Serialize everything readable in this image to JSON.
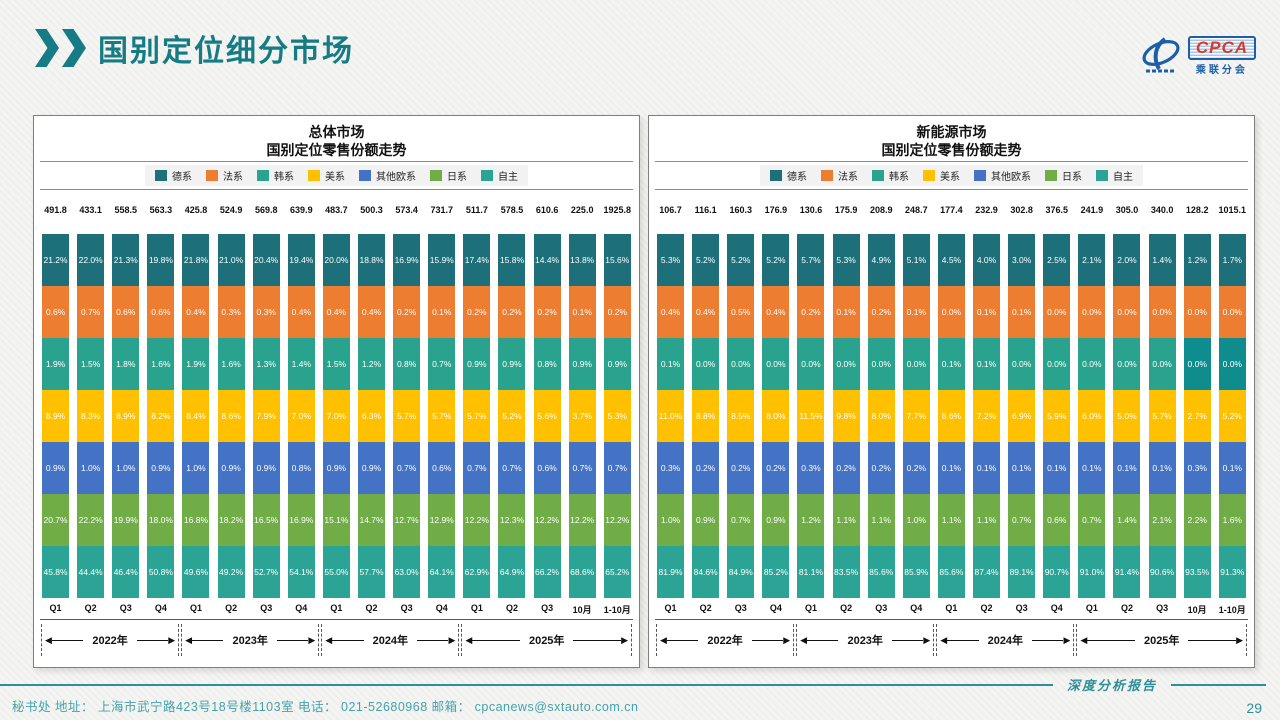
{
  "page": {
    "header_title": "国别定位细分市场",
    "footer": {
      "left": "秘书处   地址： 上海市武宁路423号18号楼1103室  电话： 021-52680968   邮箱： cpcanews@sxtauto.com.cn",
      "report_label": "深度分析报告",
      "page_number": "29"
    },
    "logo": {
      "text": "CPCA",
      "subtext": "乘联分会"
    }
  },
  "legend": [
    {
      "name": "德系",
      "color": "#1d6f7a"
    },
    {
      "name": "法系",
      "color": "#ed7d31"
    },
    {
      "name": "韩系",
      "color": "#2aa38e"
    },
    {
      "name": "美系",
      "color": "#ffc000"
    },
    {
      "name": "其他欧系",
      "color": "#4472c4"
    },
    {
      "name": "日系",
      "color": "#70ad47"
    },
    {
      "name": "自主",
      "color": "#2ba496"
    }
  ],
  "chart_data": [
    {
      "type": "bar",
      "stacked": true,
      "title": "总体市场",
      "subtitle": "国别定位零售份额走势",
      "legend_position": "top",
      "categories": [
        "Q1",
        "Q2",
        "Q3",
        "Q4",
        "Q1",
        "Q2",
        "Q3",
        "Q4",
        "Q1",
        "Q2",
        "Q3",
        "Q4",
        "Q1",
        "Q2",
        "Q3",
        "10月",
        "1-10月"
      ],
      "totals": [
        491.8,
        433.1,
        558.5,
        563.3,
        425.8,
        524.9,
        569.8,
        639.9,
        483.7,
        500.3,
        573.4,
        731.7,
        511.7,
        578.5,
        610.6,
        225.0,
        1925.8
      ],
      "series": [
        {
          "name": "德系",
          "color": "#1d6f7a",
          "values": [
            21.2,
            22.0,
            21.3,
            19.8,
            21.8,
            21.0,
            20.4,
            19.4,
            20.0,
            18.8,
            16.9,
            15.9,
            17.4,
            15.8,
            14.4,
            13.8,
            15.6
          ]
        },
        {
          "name": "法系",
          "color": "#ed7d31",
          "values": [
            0.6,
            0.7,
            0.6,
            0.6,
            0.4,
            0.3,
            0.3,
            0.4,
            0.4,
            0.4,
            0.2,
            0.1,
            0.2,
            0.2,
            0.2,
            0.1,
            0.2
          ]
        },
        {
          "name": "韩系",
          "color": "#2aa38e",
          "values": [
            1.9,
            1.5,
            1.8,
            1.6,
            1.9,
            1.6,
            1.3,
            1.4,
            1.5,
            1.2,
            0.8,
            0.7,
            0.9,
            0.9,
            0.8,
            0.9,
            0.9
          ]
        },
        {
          "name": "美系",
          "color": "#ffc000",
          "values": [
            8.9,
            8.3,
            8.9,
            8.2,
            8.4,
            8.6,
            7.9,
            7.0,
            7.0,
            6.3,
            5.7,
            5.7,
            5.7,
            5.2,
            5.6,
            3.7,
            5.3
          ]
        },
        {
          "name": "其他欧系",
          "color": "#4472c4",
          "values": [
            0.9,
            1.0,
            1.0,
            0.9,
            1.0,
            0.9,
            0.9,
            0.8,
            0.9,
            0.9,
            0.7,
            0.6,
            0.7,
            0.7,
            0.6,
            0.7,
            0.7
          ]
        },
        {
          "name": "日系",
          "color": "#70ad47",
          "values": [
            20.7,
            22.2,
            19.9,
            18.0,
            16.8,
            18.2,
            16.5,
            16.9,
            15.1,
            14.7,
            12.7,
            12.9,
            12.2,
            12.3,
            12.2,
            12.2,
            12.2
          ]
        },
        {
          "name": "自主",
          "color": "#2ba496",
          "values": [
            45.8,
            44.4,
            46.4,
            50.8,
            49.6,
            49.2,
            52.7,
            54.1,
            55.0,
            57.7,
            63.0,
            64.1,
            62.9,
            64.9,
            66.2,
            68.6,
            65.2
          ]
        }
      ],
      "year_groups": [
        {
          "label": "2022年",
          "span": 4
        },
        {
          "label": "2023年",
          "span": 4
        },
        {
          "label": "2024年",
          "span": 4
        },
        {
          "label": "2025年",
          "span": 5
        }
      ]
    },
    {
      "type": "bar",
      "stacked": true,
      "title": "新能源市场",
      "subtitle": "国别定位零售份额走势",
      "legend_position": "top",
      "categories": [
        "Q1",
        "Q2",
        "Q3",
        "Q4",
        "Q1",
        "Q2",
        "Q3",
        "Q4",
        "Q1",
        "Q2",
        "Q3",
        "Q4",
        "Q1",
        "Q2",
        "Q3",
        "10月",
        "1-10月"
      ],
      "totals": [
        106.7,
        116.1,
        160.3,
        176.9,
        130.6,
        175.9,
        208.9,
        248.7,
        177.4,
        232.9,
        302.8,
        376.5,
        241.9,
        305.0,
        340.0,
        128.2,
        1015.1
      ],
      "series": [
        {
          "name": "德系",
          "color": "#1d6f7a",
          "values": [
            5.3,
            5.2,
            5.2,
            5.2,
            5.7,
            5.3,
            4.9,
            5.1,
            4.5,
            4.0,
            3.0,
            2.5,
            2.1,
            2.0,
            1.4,
            1.2,
            1.7
          ]
        },
        {
          "name": "法系",
          "color": "#ed7d31",
          "values": [
            0.4,
            0.4,
            0.5,
            0.4,
            0.2,
            0.1,
            0.2,
            0.1,
            0.0,
            0.1,
            0.1,
            0.0,
            0.0,
            0.0,
            0.0,
            0.0,
            0.0
          ]
        },
        {
          "name": "韩系",
          "color": "#2aa38e",
          "values": [
            0.1,
            0.0,
            0.0,
            0.0,
            0.0,
            0.0,
            0.0,
            0.0,
            0.1,
            0.1,
            0.0,
            0.0,
            0.0,
            0.0,
            0.0,
            0.0,
            0.0
          ]
        },
        {
          "name": "美系",
          "color": "#ffc000",
          "values": [
            11.0,
            8.8,
            8.5,
            8.0,
            11.5,
            9.8,
            8.0,
            7.7,
            8.6,
            7.2,
            6.9,
            5.9,
            6.0,
            5.0,
            5.7,
            2.7,
            5.2
          ]
        },
        {
          "name": "其他欧系",
          "color": "#4472c4",
          "values": [
            0.3,
            0.2,
            0.2,
            0.2,
            0.3,
            0.2,
            0.2,
            0.2,
            0.1,
            0.1,
            0.1,
            0.1,
            0.1,
            0.1,
            0.1,
            0.3,
            0.1
          ]
        },
        {
          "name": "日系",
          "color": "#70ad47",
          "values": [
            1.0,
            0.9,
            0.7,
            0.9,
            1.2,
            1.1,
            1.1,
            1.0,
            1.1,
            1.1,
            0.7,
            0.6,
            0.7,
            1.4,
            2.1,
            2.2,
            1.6
          ]
        },
        {
          "name": "自主",
          "color": "#2ba496",
          "values": [
            81.9,
            84.6,
            84.9,
            85.2,
            81.1,
            83.5,
            85.6,
            85.9,
            85.6,
            87.4,
            89.1,
            90.7,
            91.0,
            91.4,
            90.6,
            93.5,
            91.3
          ]
        }
      ],
      "cell_overrides": [
        {
          "series_index": 2,
          "col": 15,
          "color": "#0e8c8e"
        },
        {
          "series_index": 2,
          "col": 16,
          "color": "#0e8c8e"
        }
      ],
      "year_groups": [
        {
          "label": "2022年",
          "span": 4
        },
        {
          "label": "2023年",
          "span": 4
        },
        {
          "label": "2024年",
          "span": 4
        },
        {
          "label": "2025年",
          "span": 5
        }
      ]
    }
  ]
}
